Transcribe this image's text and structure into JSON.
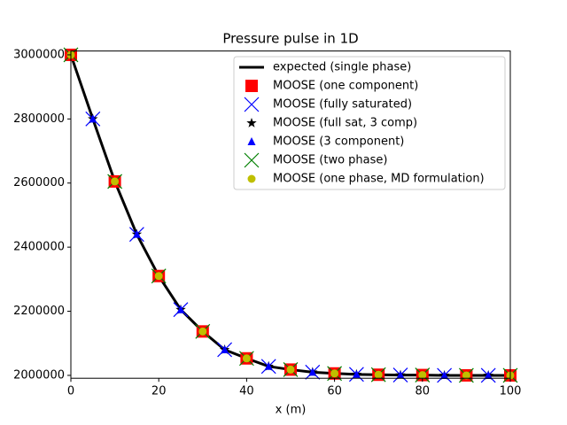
{
  "chart_data": {
    "type": "line",
    "title": "Pressure pulse in 1D",
    "x_label": "x (m)",
    "xlim": [
      0,
      100
    ],
    "ylim": [
      1991000,
      3012000
    ],
    "xticks": [
      0,
      20,
      40,
      60,
      80,
      100
    ],
    "yticks": [
      2000000,
      2200000,
      2400000,
      2600000,
      2800000,
      3000000
    ],
    "legend": "upper right",
    "series": [
      {
        "name": "expected (single phase)",
        "color": "#000000",
        "marker": "line",
        "x": [
          0,
          5,
          10,
          15,
          20,
          25,
          30,
          35,
          40,
          45,
          50,
          55,
          60,
          65,
          70,
          75,
          80,
          85,
          90,
          95,
          100
        ],
        "values": [
          3000000,
          2800000,
          2605000,
          2440000,
          2310000,
          2205000,
          2137000,
          2080000,
          2053000,
          2028000,
          2018000,
          2010000,
          2006000,
          2003000,
          2002000,
          2001000,
          2001000,
          2000000,
          2000000,
          2000000,
          2000000
        ]
      },
      {
        "name": "MOOSE (one component)",
        "color": "#ff0000",
        "marker": "square",
        "x": [
          0,
          10,
          20,
          30,
          40,
          50,
          60,
          70,
          80,
          90,
          100
        ],
        "values": [
          3000000,
          2605000,
          2310000,
          2137000,
          2053000,
          2018000,
          2006000,
          2002000,
          2001000,
          2000000,
          2000000
        ]
      },
      {
        "name": "MOOSE (fully saturated)",
        "color": "#0000ff",
        "marker": "x",
        "x": [
          5,
          15,
          25,
          35,
          45,
          55,
          65,
          75,
          85,
          95
        ],
        "values": [
          2800000,
          2440000,
          2205000,
          2080000,
          2028000,
          2010000,
          2003000,
          2001000,
          2000000,
          2000000
        ]
      },
      {
        "name": "MOOSE (full sat, 3 comp)",
        "color": "#000000",
        "marker": "star",
        "x": [
          5,
          15,
          25,
          35,
          45,
          55,
          65,
          75,
          85,
          95
        ],
        "values": [
          2800000,
          2440000,
          2205000,
          2080000,
          2028000,
          2010000,
          2003000,
          2001000,
          2000000,
          2000000
        ]
      },
      {
        "name": "MOOSE (3 component)",
        "color": "#0000ff",
        "marker": "triangle",
        "x": [
          5,
          15,
          25,
          35,
          45,
          55,
          65,
          75,
          85,
          95
        ],
        "values": [
          2800000,
          2440000,
          2205000,
          2080000,
          2028000,
          2010000,
          2003000,
          2001000,
          2000000,
          2000000
        ]
      },
      {
        "name": "MOOSE (two phase)",
        "color": "#008000",
        "marker": "x",
        "x": [
          0,
          10,
          20,
          30,
          40,
          50,
          60,
          70,
          80,
          90,
          100
        ],
        "values": [
          3000000,
          2605000,
          2310000,
          2137000,
          2053000,
          2018000,
          2006000,
          2002000,
          2001000,
          2000000,
          2000000
        ]
      },
      {
        "name": "MOOSE (one phase, MD formulation)",
        "color": "#bfbf00",
        "marker": "circle",
        "x": [
          0,
          10,
          20,
          30,
          40,
          50,
          60,
          70,
          80,
          90,
          100
        ],
        "values": [
          3000000,
          2605000,
          2310000,
          2137000,
          2053000,
          2018000,
          2006000,
          2002000,
          2001000,
          2000000,
          2000000
        ]
      }
    ]
  }
}
